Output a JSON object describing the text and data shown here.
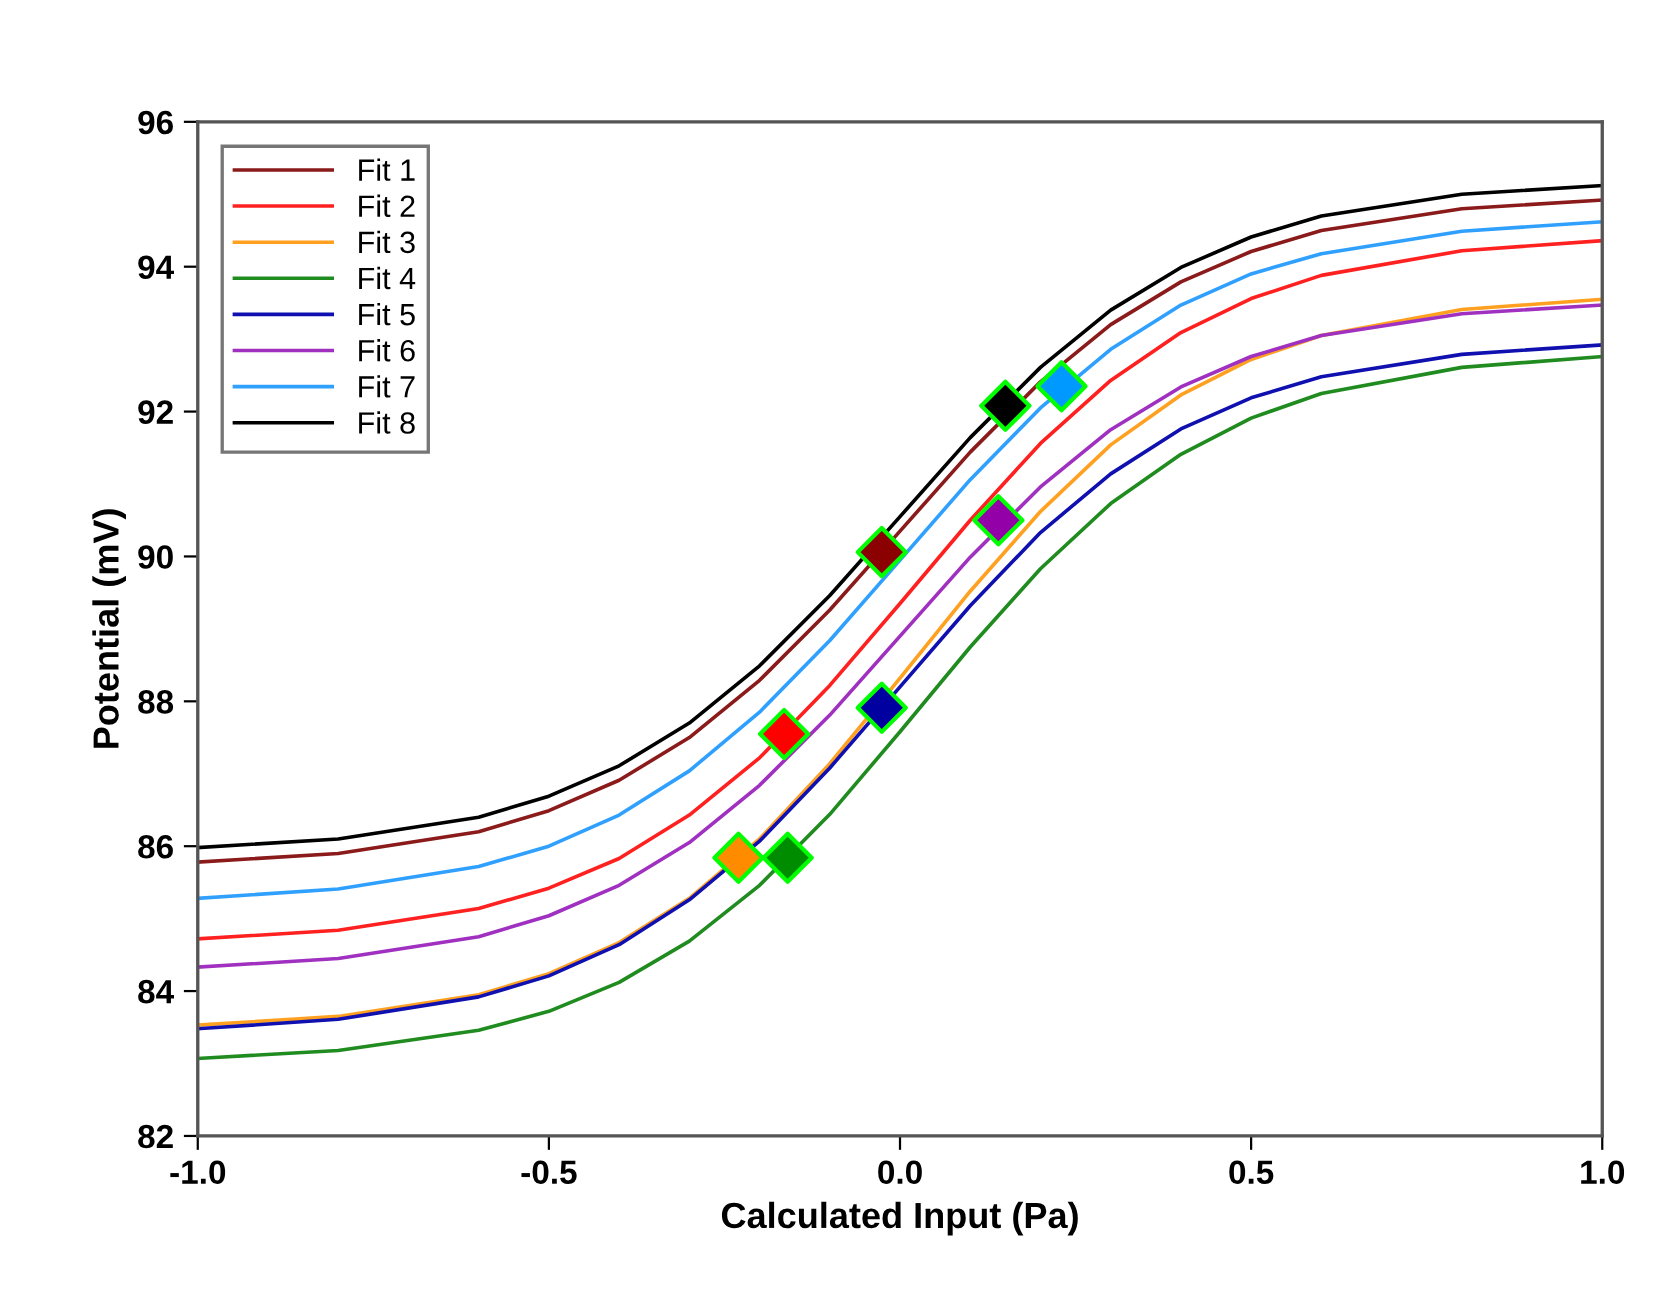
{
  "chart_data": {
    "type": "line",
    "xlabel": "Calculated Input (Pa)",
    "ylabel": "Potential (mV)",
    "xlim": [
      -1.0,
      1.0
    ],
    "xticks": [
      {
        "value": -1.0,
        "label": "-1.0"
      },
      {
        "value": -0.5,
        "label": "-0.5"
      },
      {
        "value": 0.0,
        "label": "0.0"
      },
      {
        "value": 0.5,
        "label": "0.5"
      },
      {
        "value": 1.0,
        "label": "1.0"
      }
    ],
    "ylim": [
      82,
      96
    ],
    "yticks": [
      82,
      84,
      86,
      88,
      90,
      92,
      94,
      96
    ],
    "grid": false,
    "legend": "top left",
    "marker": "none",
    "line_style": "solid",
    "x": [
      -1,
      -0.8,
      -0.6,
      -0.5,
      -0.4,
      -0.3,
      -0.2,
      -0.1,
      0,
      0.1,
      0.2,
      0.3,
      0.4,
      0.5,
      0.6,
      0.8,
      1
    ],
    "series": [
      {
        "name": "Fit 1",
        "color": "#8b1a1a",
        "values": [
          85.78,
          85.9,
          86.2,
          86.49,
          86.91,
          87.5,
          88.29,
          89.26,
          90.35,
          91.44,
          92.41,
          93.2,
          93.79,
          94.21,
          94.5,
          94.8,
          94.92
        ]
      },
      {
        "name": "Fit 2",
        "color": "#ff2020",
        "values": [
          84.72,
          84.84,
          85.14,
          85.42,
          85.83,
          86.43,
          87.22,
          88.22,
          89.35,
          90.5,
          91.56,
          92.43,
          93.09,
          93.56,
          93.88,
          94.22,
          94.36
        ]
      },
      {
        "name": "Fit 3",
        "color": "#ffa020",
        "values": [
          83.53,
          83.65,
          83.95,
          84.24,
          84.67,
          85.28,
          86.1,
          87.14,
          88.32,
          89.52,
          90.62,
          91.54,
          92.23,
          92.72,
          93.05,
          93.41,
          93.55
        ]
      },
      {
        "name": "Fit 4",
        "color": "#208c20",
        "values": [
          83.07,
          83.18,
          83.46,
          83.72,
          84.12,
          84.69,
          85.46,
          86.44,
          87.58,
          88.75,
          89.83,
          90.73,
          91.41,
          91.91,
          92.25,
          92.61,
          92.76
        ]
      },
      {
        "name": "Fit 5",
        "color": "#1010b0",
        "values": [
          83.48,
          83.61,
          83.92,
          84.21,
          84.64,
          85.26,
          86.07,
          87.08,
          88.2,
          89.32,
          90.33,
          91.14,
          91.76,
          92.19,
          92.48,
          92.79,
          92.92
        ]
      },
      {
        "name": "Fit 6",
        "color": "#a030c0",
        "values": [
          84.33,
          84.45,
          84.75,
          85.04,
          85.46,
          86.05,
          86.84,
          87.81,
          88.9,
          89.99,
          90.96,
          91.75,
          92.34,
          92.76,
          93.05,
          93.35,
          93.47
        ]
      },
      {
        "name": "Fit 7",
        "color": "#30a0ff",
        "values": [
          85.28,
          85.41,
          85.72,
          86.0,
          86.43,
          87.04,
          87.85,
          88.84,
          89.95,
          91.06,
          92.05,
          92.86,
          93.47,
          93.9,
          94.18,
          94.49,
          94.62
        ]
      },
      {
        "name": "Fit 8",
        "color": "#000000",
        "values": [
          85.98,
          86.1,
          86.4,
          86.69,
          87.11,
          87.7,
          88.49,
          89.46,
          90.55,
          91.64,
          92.61,
          93.4,
          93.99,
          94.41,
          94.7,
          95.0,
          95.12
        ]
      },
      {
        "type": "scatter",
        "marker": "diamond",
        "color": "#8b0000",
        "x": [
          -0.026
        ],
        "values": [
          90.06
        ]
      },
      {
        "type": "scatter",
        "marker": "diamond",
        "color": "#ff0000",
        "x": [
          -0.165
        ],
        "values": [
          87.55
        ]
      },
      {
        "type": "scatter",
        "marker": "diamond",
        "color": "#ff8c00",
        "x": [
          -0.23
        ],
        "values": [
          85.84
        ]
      },
      {
        "type": "scatter",
        "marker": "diamond",
        "color": "#008c00",
        "x": [
          -0.16
        ],
        "values": [
          85.84
        ]
      },
      {
        "type": "scatter",
        "marker": "diamond",
        "color": "#0000a0",
        "x": [
          -0.026
        ],
        "values": [
          87.91
        ]
      },
      {
        "type": "scatter",
        "marker": "diamond",
        "color": "#9400a8",
        "x": [
          0.14
        ],
        "values": [
          90.5
        ]
      },
      {
        "type": "scatter",
        "marker": "diamond",
        "color": "#0099ff",
        "x": [
          0.23
        ],
        "values": [
          92.35
        ]
      },
      {
        "type": "scatter",
        "marker": "diamond",
        "color": "#000000",
        "x": [
          0.15
        ],
        "values": [
          92.08
        ]
      }
    ]
  }
}
